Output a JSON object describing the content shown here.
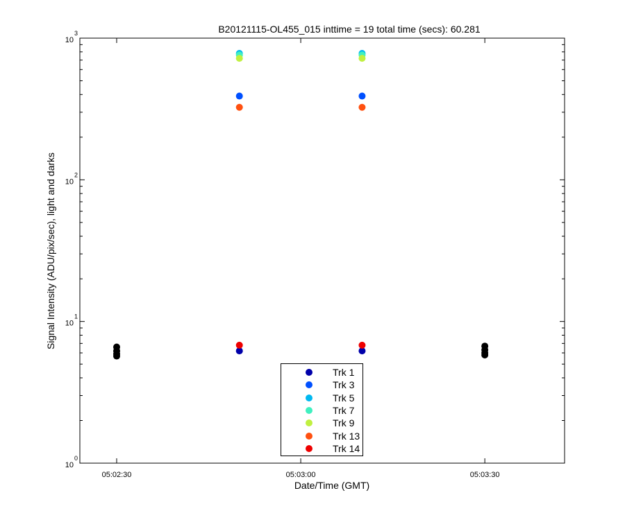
{
  "chart_data": {
    "type": "scatter",
    "title": "B20121115-OL455_015 inttime = 19 total time (secs): 60.281",
    "xlabel": "Date/Time (GMT)",
    "ylabel": "Signal Intensity (ADU/pix/sec), light and darks",
    "y_scale": "log",
    "ylim": [
      1,
      1000
    ],
    "xlim": [
      "05:02:24",
      "05:03:43"
    ],
    "x_ticks": [
      "05:02:30",
      "05:03:00",
      "05:03:30"
    ],
    "y_ticks": [
      {
        "base": "10",
        "exp": "0"
      },
      {
        "base": "10",
        "exp": "1"
      },
      {
        "base": "10",
        "exp": "2"
      },
      {
        "base": "10",
        "exp": "3"
      }
    ],
    "grid": false,
    "legend_position": "bottom-center",
    "series": [
      {
        "name": "Trk 1",
        "color": "#0000aa",
        "points": [
          {
            "x": "05:02:50",
            "y": 6.2
          },
          {
            "x": "05:03:10",
            "y": 6.2
          }
        ]
      },
      {
        "name": "Trk 3",
        "color": "#0050ff",
        "points": [
          {
            "x": "05:02:50",
            "y": 390
          },
          {
            "x": "05:03:10",
            "y": 390
          }
        ]
      },
      {
        "name": "Trk 5",
        "color": "#00b8f0",
        "points": [
          {
            "x": "05:02:50",
            "y": 780
          },
          {
            "x": "05:03:10",
            "y": 780
          }
        ]
      },
      {
        "name": "Trk 7",
        "color": "#40f0c0",
        "points": [
          {
            "x": "05:02:50",
            "y": 760
          },
          {
            "x": "05:03:10",
            "y": 760
          }
        ]
      },
      {
        "name": "Trk 9",
        "color": "#c0f040",
        "points": [
          {
            "x": "05:02:50",
            "y": 720
          },
          {
            "x": "05:03:10",
            "y": 720
          }
        ]
      },
      {
        "name": "Trk 13",
        "color": "#ff5010",
        "points": [
          {
            "x": "05:02:50",
            "y": 325
          },
          {
            "x": "05:03:10",
            "y": 325
          }
        ]
      },
      {
        "name": "Trk 14",
        "color": "#ee0000",
        "points": [
          {
            "x": "05:02:50",
            "y": 6.8
          },
          {
            "x": "05:03:10",
            "y": 6.8
          }
        ]
      }
    ],
    "darks": {
      "color": "#000000",
      "points": [
        {
          "x": "05:02:30",
          "y": 6.6
        },
        {
          "x": "05:02:30",
          "y": 6.2
        },
        {
          "x": "05:02:30",
          "y": 5.9
        },
        {
          "x": "05:02:30",
          "y": 5.7
        },
        {
          "x": "05:03:30",
          "y": 6.7
        },
        {
          "x": "05:03:30",
          "y": 6.3
        },
        {
          "x": "05:03:30",
          "y": 6.0
        },
        {
          "x": "05:03:30",
          "y": 5.8
        }
      ]
    }
  }
}
